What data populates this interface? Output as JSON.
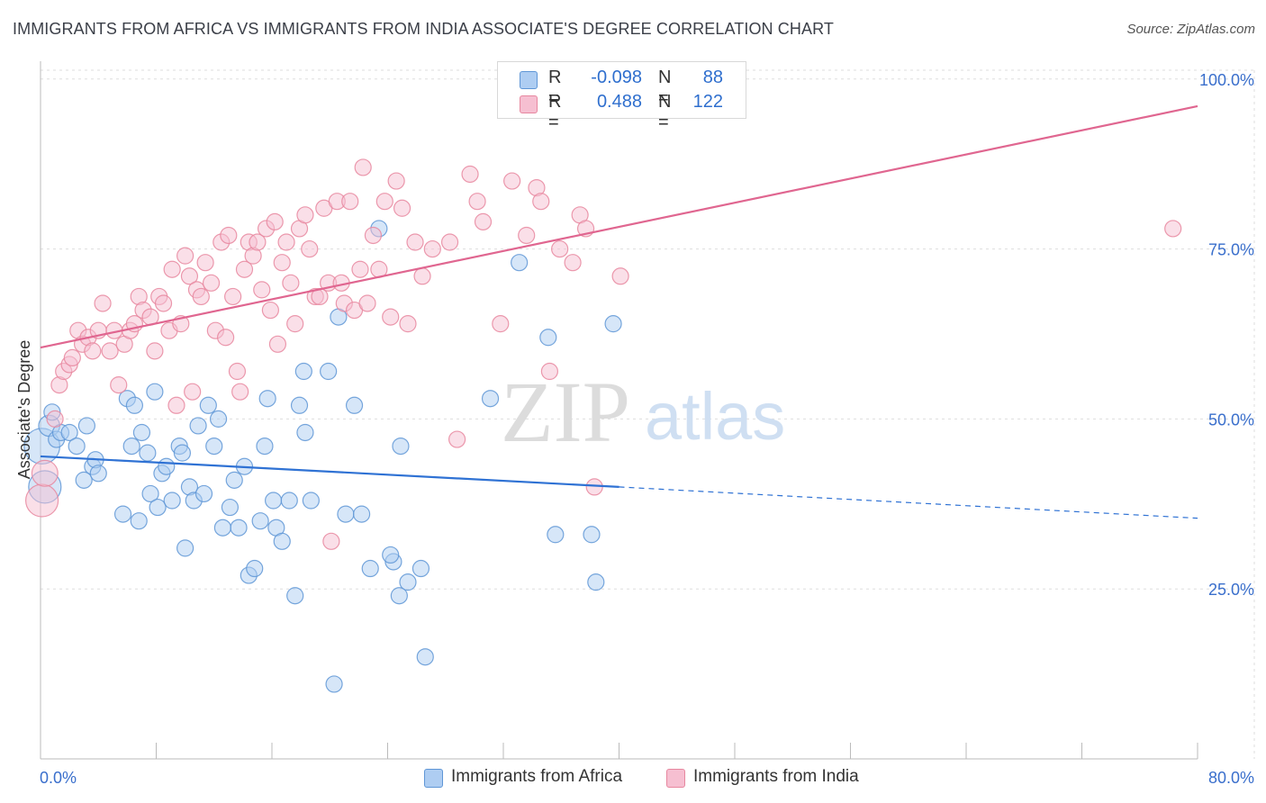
{
  "title": "IMMIGRANTS FROM AFRICA VS IMMIGRANTS FROM INDIA ASSOCIATE'S DEGREE CORRELATION CHART",
  "source": "Source: ZipAtlas.com",
  "watermark": {
    "zip": "ZIP",
    "atlas": "atlas"
  },
  "legend": {
    "africa": {
      "r_label": "R =",
      "r_value": "-0.098",
      "n_label": "N =",
      "n_value": "88"
    },
    "india": {
      "r_label": "R =",
      "r_value": "0.488",
      "n_label": "N =",
      "n_value": "122"
    }
  },
  "colors": {
    "africa_fill": "#aecdf2",
    "africa_stroke": "#5f96d6",
    "africa_line": "#2f72d4",
    "india_fill": "#f6bfd1",
    "india_stroke": "#e7879f",
    "india_line": "#e06690",
    "axis_label": "#3a6fcc",
    "grid": "#dddddd"
  },
  "chart_data": {
    "type": "scatter",
    "title": "IMMIGRANTS FROM AFRICA VS IMMIGRANTS FROM INDIA ASSOCIATE'S DEGREE CORRELATION CHART",
    "xlabel": "",
    "ylabel": "Associate's Degree",
    "xlim": [
      0,
      80
    ],
    "ylim": [
      0,
      105
    ],
    "x_tick_labels": [
      "0.0%",
      "80.0%"
    ],
    "y_ticks": [
      25,
      50,
      75,
      100
    ],
    "y_tick_labels": [
      "25.0%",
      "50.0%",
      "75.0%",
      "100.0%"
    ],
    "grid": true,
    "legend_position": "top-center",
    "series": [
      {
        "name": "Immigrants from Africa",
        "trend": {
          "x": [
            0,
            40
          ],
          "y": [
            44.5,
            40.0
          ],
          "dashed_x": [
            40,
            80
          ],
          "dashed_y": [
            40.0,
            35.4
          ]
        },
        "points": [
          [
            0.1,
            46,
            2.2
          ],
          [
            0.3,
            40,
            2.0
          ],
          [
            0.6,
            49,
            1.3
          ],
          [
            0.8,
            51,
            1.0
          ],
          [
            1.1,
            47,
            1.0
          ],
          [
            1.4,
            48,
            1.0
          ],
          [
            2.0,
            48,
            1.0
          ],
          [
            2.5,
            46,
            1.0
          ],
          [
            3.0,
            41,
            1.0
          ],
          [
            3.2,
            49,
            1.0
          ],
          [
            3.6,
            43,
            1.0
          ],
          [
            3.8,
            44,
            1.0
          ],
          [
            4.0,
            42,
            1.0
          ],
          [
            5.7,
            36,
            1.0
          ],
          [
            6.0,
            53,
            1.0
          ],
          [
            6.3,
            46,
            1.0
          ],
          [
            6.5,
            52,
            1.0
          ],
          [
            6.8,
            35,
            1.0
          ],
          [
            7.0,
            48,
            1.0
          ],
          [
            7.4,
            45,
            1.0
          ],
          [
            7.6,
            39,
            1.0
          ],
          [
            7.9,
            54,
            1.0
          ],
          [
            8.1,
            37,
            1.0
          ],
          [
            8.4,
            42,
            1.0
          ],
          [
            8.7,
            43,
            1.0
          ],
          [
            9.1,
            38,
            1.0
          ],
          [
            9.6,
            46,
            1.0
          ],
          [
            9.8,
            45,
            1.0
          ],
          [
            10.0,
            31,
            1.0
          ],
          [
            10.3,
            40,
            1.0
          ],
          [
            10.6,
            38,
            1.0
          ],
          [
            10.9,
            49,
            1.0
          ],
          [
            11.3,
            39,
            1.0
          ],
          [
            11.6,
            52,
            1.0
          ],
          [
            12.0,
            46,
            1.0
          ],
          [
            12.3,
            50,
            1.0
          ],
          [
            12.6,
            34,
            1.0
          ],
          [
            13.1,
            37,
            1.0
          ],
          [
            13.4,
            41,
            1.0
          ],
          [
            13.7,
            34,
            1.0
          ],
          [
            14.1,
            43,
            1.0
          ],
          [
            14.4,
            27,
            1.0
          ],
          [
            14.8,
            28,
            1.0
          ],
          [
            15.2,
            35,
            1.0
          ],
          [
            15.5,
            46,
            1.0
          ],
          [
            15.7,
            53,
            1.0
          ],
          [
            16.1,
            38,
            1.0
          ],
          [
            16.3,
            34,
            1.0
          ],
          [
            16.7,
            32,
            1.0
          ],
          [
            17.2,
            38,
            1.0
          ],
          [
            17.6,
            24,
            1.0
          ],
          [
            17.9,
            52,
            1.0
          ],
          [
            18.3,
            48,
            1.0
          ],
          [
            18.2,
            57,
            1.0
          ],
          [
            18.7,
            38,
            1.0
          ],
          [
            19.9,
            57,
            1.0
          ],
          [
            20.3,
            11,
            1.0
          ],
          [
            20.6,
            65,
            1.0
          ],
          [
            21.1,
            36,
            1.0
          ],
          [
            21.7,
            52,
            1.0
          ],
          [
            22.2,
            36,
            1.0
          ],
          [
            22.8,
            28,
            1.0
          ],
          [
            23.4,
            78,
            1.0
          ],
          [
            24.4,
            29,
            1.0
          ],
          [
            24.8,
            24,
            1.0
          ],
          [
            25.4,
            26,
            1.0
          ],
          [
            24.2,
            30,
            1.0
          ],
          [
            24.9,
            46,
            1.0
          ],
          [
            26.3,
            28,
            1.0
          ],
          [
            26.6,
            15,
            1.0
          ],
          [
            31.1,
            53,
            1.0
          ],
          [
            33.1,
            73,
            1.0
          ],
          [
            35.1,
            62,
            1.0
          ],
          [
            35.6,
            33,
            1.0
          ],
          [
            38.1,
            33,
            1.0
          ],
          [
            38.4,
            26,
            1.0
          ],
          [
            39.6,
            64,
            1.0
          ]
        ]
      },
      {
        "name": "Immigrants from India",
        "trend": {
          "x": [
            0,
            80
          ],
          "y": [
            60.5,
            96.0
          ]
        },
        "points": [
          [
            0.1,
            38,
            2.0
          ],
          [
            0.3,
            42,
            1.6
          ],
          [
            1.0,
            50,
            1.0
          ],
          [
            1.3,
            55,
            1.0
          ],
          [
            1.6,
            57,
            1.0
          ],
          [
            2.0,
            58,
            1.0
          ],
          [
            2.2,
            59,
            1.0
          ],
          [
            2.6,
            63,
            1.0
          ],
          [
            2.9,
            61,
            1.0
          ],
          [
            3.3,
            62,
            1.0
          ],
          [
            3.6,
            60,
            1.0
          ],
          [
            4.0,
            63,
            1.0
          ],
          [
            4.3,
            67,
            1.0
          ],
          [
            4.8,
            60,
            1.0
          ],
          [
            5.1,
            63,
            1.0
          ],
          [
            5.4,
            55,
            1.0
          ],
          [
            5.8,
            61,
            1.0
          ],
          [
            6.2,
            63,
            1.0
          ],
          [
            6.5,
            64,
            1.0
          ],
          [
            6.8,
            68,
            1.0
          ],
          [
            7.1,
            66,
            1.0
          ],
          [
            7.6,
            65,
            1.0
          ],
          [
            7.9,
            60,
            1.0
          ],
          [
            8.2,
            68,
            1.0
          ],
          [
            8.5,
            67,
            1.0
          ],
          [
            8.9,
            63,
            1.0
          ],
          [
            9.1,
            72,
            1.0
          ],
          [
            9.4,
            52,
            1.0
          ],
          [
            9.7,
            64,
            1.0
          ],
          [
            10.0,
            74,
            1.0
          ],
          [
            10.3,
            71,
            1.0
          ],
          [
            10.5,
            54,
            1.0
          ],
          [
            10.8,
            69,
            1.0
          ],
          [
            11.1,
            68,
            1.0
          ],
          [
            11.4,
            73,
            1.0
          ],
          [
            11.8,
            70,
            1.0
          ],
          [
            12.1,
            63,
            1.0
          ],
          [
            12.5,
            76,
            1.0
          ],
          [
            12.8,
            62,
            1.0
          ],
          [
            13.0,
            77,
            1.0
          ],
          [
            13.3,
            68,
            1.0
          ],
          [
            13.6,
            57,
            1.0
          ],
          [
            13.8,
            54,
            1.0
          ],
          [
            14.1,
            72,
            1.0
          ],
          [
            14.4,
            76,
            1.0
          ],
          [
            14.7,
            74,
            1.0
          ],
          [
            15.0,
            76,
            1.0
          ],
          [
            15.3,
            69,
            1.0
          ],
          [
            15.6,
            78,
            1.0
          ],
          [
            15.9,
            66,
            1.0
          ],
          [
            16.2,
            79,
            1.0
          ],
          [
            16.4,
            61,
            1.0
          ],
          [
            16.7,
            73,
            1.0
          ],
          [
            17.0,
            76,
            1.0
          ],
          [
            17.3,
            70,
            1.0
          ],
          [
            17.6,
            64,
            1.0
          ],
          [
            17.9,
            78,
            1.0
          ],
          [
            18.3,
            80,
            1.0
          ],
          [
            18.6,
            75,
            1.0
          ],
          [
            19.0,
            68,
            1.0
          ],
          [
            19.3,
            68,
            1.0
          ],
          [
            19.6,
            81,
            1.0
          ],
          [
            19.9,
            70,
            1.0
          ],
          [
            20.1,
            32,
            1.0
          ],
          [
            20.5,
            82,
            1.0
          ],
          [
            20.8,
            70,
            1.0
          ],
          [
            21.0,
            67,
            1.0
          ],
          [
            21.4,
            82,
            1.0
          ],
          [
            21.7,
            66,
            1.0
          ],
          [
            22.1,
            72,
            1.0
          ],
          [
            22.3,
            87,
            1.0
          ],
          [
            22.6,
            67,
            1.0
          ],
          [
            23.0,
            77,
            1.0
          ],
          [
            23.4,
            72,
            1.0
          ],
          [
            23.8,
            82,
            1.0
          ],
          [
            24.2,
            65,
            1.0
          ],
          [
            24.6,
            85,
            1.0
          ],
          [
            25.0,
            81,
            1.0
          ],
          [
            25.4,
            64,
            1.0
          ],
          [
            25.9,
            76,
            1.0
          ],
          [
            26.4,
            71,
            1.0
          ],
          [
            27.1,
            75,
            1.0
          ],
          [
            28.3,
            76,
            1.0
          ],
          [
            28.8,
            47,
            1.0
          ],
          [
            29.7,
            86,
            1.0
          ],
          [
            30.2,
            82,
            1.0
          ],
          [
            30.6,
            79,
            1.0
          ],
          [
            31.8,
            64,
            1.0
          ],
          [
            32.6,
            85,
            1.0
          ],
          [
            33.6,
            77,
            1.0
          ],
          [
            34.3,
            84,
            1.0
          ],
          [
            34.6,
            82,
            1.0
          ],
          [
            35.2,
            57,
            1.0
          ],
          [
            35.9,
            75,
            1.0
          ],
          [
            36.8,
            73,
            1.0
          ],
          [
            37.3,
            80,
            1.0
          ],
          [
            37.7,
            78,
            1.0
          ],
          [
            38.3,
            40,
            1.0
          ],
          [
            40.1,
            71,
            1.0
          ],
          [
            78.3,
            78,
            1.0
          ]
        ]
      }
    ]
  },
  "bottom_legend": {
    "africa_label": "Immigrants from Africa",
    "india_label": "Immigrants from India"
  }
}
